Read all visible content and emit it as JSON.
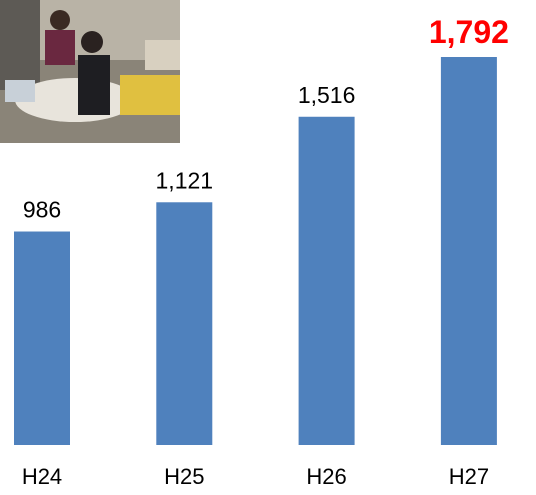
{
  "chart_data": {
    "type": "bar",
    "categories": [
      "H24",
      "H25",
      "H26",
      "H27"
    ],
    "values": [
      986,
      1121,
      1516,
      1792
    ],
    "value_labels": [
      "986",
      "1,121",
      "1,516",
      "1,792"
    ],
    "value_label_colors": [
      "#000000",
      "#000000",
      "#000000",
      "#ff0000"
    ],
    "color": "#4f81bd"
  }
}
